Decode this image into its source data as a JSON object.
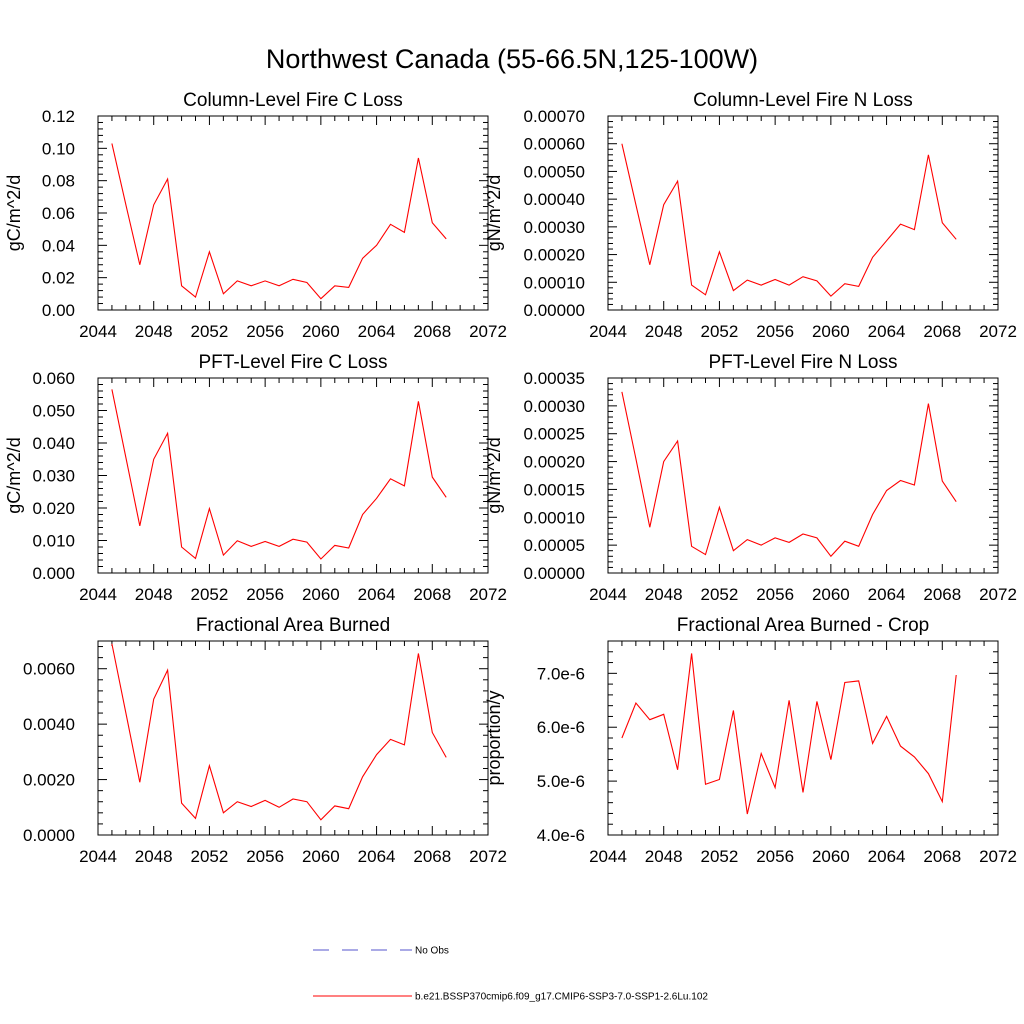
{
  "figure": {
    "title": "Northwest Canada (55-66.5N,125-100W)"
  },
  "legend": {
    "items": [
      {
        "label": "No Obs",
        "color": "#5555cc",
        "dash": "dashed"
      },
      {
        "label": "b.e21.BSSP370cmip6.f09_g17.CMIP6-SSP3-7.0-SSP1-2.6Lu.102",
        "color": "#ff0000",
        "dash": "solid"
      }
    ]
  },
  "chart_data": [
    {
      "type": "line",
      "title": "Column-Level Fire C Loss",
      "ylabel": "gC/m^2/d",
      "xlim": [
        2044,
        2072
      ],
      "ylim": [
        0,
        0.12
      ],
      "xticks": [
        2044,
        2048,
        2052,
        2056,
        2060,
        2064,
        2068,
        2072
      ],
      "yticks": [
        0,
        0.02,
        0.04,
        0.06,
        0.08,
        0.1,
        0.12
      ],
      "yticklabels": [
        "0.00",
        "0.02",
        "0.04",
        "0.06",
        "0.08",
        "0.10",
        "0.12"
      ],
      "x": [
        2045,
        2046,
        2047,
        2048,
        2049,
        2050,
        2051,
        2052,
        2053,
        2054,
        2055,
        2056,
        2057,
        2058,
        2059,
        2060,
        2061,
        2062,
        2063,
        2064,
        2065,
        2066,
        2067,
        2068,
        2069
      ],
      "series": [
        {
          "name": "b.e21.BSSP370cmip6.f09_g17.CMIP6-SSP3-7.0-SSP1-2.6Lu.102",
          "color": "#ff0000",
          "values": [
            0.103,
            0.065,
            0.028,
            0.065,
            0.081,
            0.015,
            0.008,
            0.036,
            0.01,
            0.018,
            0.015,
            0.018,
            0.015,
            0.019,
            0.017,
            0.007,
            0.015,
            0.014,
            0.032,
            0.04,
            0.053,
            0.048,
            0.094,
            0.054,
            0.044
          ]
        }
      ]
    },
    {
      "type": "line",
      "title": "Column-Level Fire N Loss",
      "ylabel": "gN/m^2/d",
      "xlim": [
        2044,
        2072
      ],
      "ylim": [
        0,
        0.0007
      ],
      "xticks": [
        2044,
        2048,
        2052,
        2056,
        2060,
        2064,
        2068,
        2072
      ],
      "yticks": [
        0,
        0.0001,
        0.0002,
        0.0003,
        0.0004,
        0.0005,
        0.0006,
        0.0007
      ],
      "yticklabels": [
        "0.00000",
        "0.00010",
        "0.00020",
        "0.00030",
        "0.00040",
        "0.00050",
        "0.00060",
        "0.00070"
      ],
      "x": [
        2045,
        2046,
        2047,
        2048,
        2049,
        2050,
        2051,
        2052,
        2053,
        2054,
        2055,
        2056,
        2057,
        2058,
        2059,
        2060,
        2061,
        2062,
        2063,
        2064,
        2065,
        2066,
        2067,
        2068,
        2069
      ],
      "series": [
        {
          "name": "b.e21.BSSP370cmip6.f09_g17.CMIP6-SSP3-7.0-SSP1-2.6Lu.102",
          "color": "#ff0000",
          "values": [
            0.0006,
            0.00038,
            0.000163,
            0.00038,
            0.000465,
            9e-05,
            5.5e-05,
            0.00021,
            7e-05,
            0.000108,
            9e-05,
            0.00011,
            9e-05,
            0.00012,
            0.000105,
            5e-05,
            9.5e-05,
            8.5e-05,
            0.00019,
            0.00025,
            0.00031,
            0.00029,
            0.00056,
            0.000315,
            0.000255
          ]
        }
      ]
    },
    {
      "type": "line",
      "title": "PFT-Level Fire C Loss",
      "ylabel": "gC/m^2/d",
      "xlim": [
        2044,
        2072
      ],
      "ylim": [
        0,
        0.06
      ],
      "xticks": [
        2044,
        2048,
        2052,
        2056,
        2060,
        2064,
        2068,
        2072
      ],
      "yticks": [
        0,
        0.01,
        0.02,
        0.03,
        0.04,
        0.05,
        0.06
      ],
      "yticklabels": [
        "0.000",
        "0.010",
        "0.020",
        "0.030",
        "0.040",
        "0.050",
        "0.060"
      ],
      "x": [
        2045,
        2046,
        2047,
        2048,
        2049,
        2050,
        2051,
        2052,
        2053,
        2054,
        2055,
        2056,
        2057,
        2058,
        2059,
        2060,
        2061,
        2062,
        2063,
        2064,
        2065,
        2066,
        2067,
        2068,
        2069
      ],
      "series": [
        {
          "name": "b.e21.BSSP370cmip6.f09_g17.CMIP6-SSP3-7.0-SSP1-2.6Lu.102",
          "color": "#ff0000",
          "values": [
            0.0565,
            0.0355,
            0.0145,
            0.035,
            0.043,
            0.008,
            0.0045,
            0.0198,
            0.0055,
            0.0099,
            0.0082,
            0.0097,
            0.0082,
            0.0104,
            0.0095,
            0.0043,
            0.0085,
            0.0077,
            0.018,
            0.023,
            0.029,
            0.0268,
            0.0528,
            0.0295,
            0.0233
          ]
        }
      ]
    },
    {
      "type": "line",
      "title": "PFT-Level Fire N Loss",
      "ylabel": "gN/m^2/d",
      "xlim": [
        2044,
        2072
      ],
      "ylim": [
        0,
        0.00035
      ],
      "xticks": [
        2044,
        2048,
        2052,
        2056,
        2060,
        2064,
        2068,
        2072
      ],
      "yticks": [
        0,
        5e-05,
        0.0001,
        0.00015,
        0.0002,
        0.00025,
        0.0003,
        0.00035
      ],
      "yticklabels": [
        "0.00000",
        "0.00005",
        "0.00010",
        "0.00015",
        "0.00020",
        "0.00025",
        "0.00030",
        "0.00035"
      ],
      "x": [
        2045,
        2046,
        2047,
        2048,
        2049,
        2050,
        2051,
        2052,
        2053,
        2054,
        2055,
        2056,
        2057,
        2058,
        2059,
        2060,
        2061,
        2062,
        2063,
        2064,
        2065,
        2066,
        2067,
        2068,
        2069
      ],
      "series": [
        {
          "name": "b.e21.BSSP370cmip6.f09_g17.CMIP6-SSP3-7.0-SSP1-2.6Lu.102",
          "color": "#ff0000",
          "values": [
            0.000325,
            0.000205,
            8.2e-05,
            0.0002,
            0.000237,
            4.8e-05,
            3.3e-05,
            0.000118,
            4e-05,
            6e-05,
            5e-05,
            6.3e-05,
            5.5e-05,
            7e-05,
            6.3e-05,
            3e-05,
            5.7e-05,
            4.8e-05,
            0.000105,
            0.000148,
            0.000166,
            0.000158,
            0.000304,
            0.000165,
            0.000128
          ]
        }
      ]
    },
    {
      "type": "line",
      "title": "Fractional Area Burned",
      "ylabel": "",
      "xlim": [
        2044,
        2072
      ],
      "ylim": [
        0,
        0.007
      ],
      "xticks": [
        2044,
        2048,
        2052,
        2056,
        2060,
        2064,
        2068,
        2072
      ],
      "yticks": [
        0,
        0.002,
        0.004,
        0.006
      ],
      "yticklabels": [
        "0.0000",
        "0.0020",
        "0.0040",
        "0.0060"
      ],
      "x": [
        2045,
        2046,
        2047,
        2048,
        2049,
        2050,
        2051,
        2052,
        2053,
        2054,
        2055,
        2056,
        2057,
        2058,
        2059,
        2060,
        2061,
        2062,
        2063,
        2064,
        2065,
        2066,
        2067,
        2068,
        2069
      ],
      "series": [
        {
          "name": "b.e21.BSSP370cmip6.f09_g17.CMIP6-SSP3-7.0-SSP1-2.6Lu.102",
          "color": "#ff0000",
          "values": [
            0.0069,
            0.0044,
            0.0019,
            0.0049,
            0.00595,
            0.00115,
            0.0006,
            0.0025,
            0.0008,
            0.0012,
            0.00103,
            0.00125,
            0.001,
            0.0013,
            0.0012,
            0.00055,
            0.00105,
            0.00095,
            0.0021,
            0.0029,
            0.00345,
            0.00325,
            0.00655,
            0.0037,
            0.0028
          ]
        }
      ]
    },
    {
      "type": "line",
      "title": "Fractional Area Burned - Crop",
      "ylabel": "proportion/y",
      "xlim": [
        2044,
        2072
      ],
      "ylim": [
        4e-06,
        7.6e-06
      ],
      "xticks": [
        2044,
        2048,
        2052,
        2056,
        2060,
        2064,
        2068,
        2072
      ],
      "yticks": [
        4e-06,
        5e-06,
        6e-06,
        7e-06
      ],
      "yticklabels": [
        "4.0e-6",
        "5.0e-6",
        "6.0e-6",
        "7.0e-6"
      ],
      "x": [
        2045,
        2046,
        2047,
        2048,
        2049,
        2050,
        2051,
        2052,
        2053,
        2054,
        2055,
        2056,
        2057,
        2058,
        2059,
        2060,
        2061,
        2062,
        2063,
        2064,
        2065,
        2066,
        2067,
        2068,
        2069
      ],
      "series": [
        {
          "name": "b.e21.BSSP370cmip6.f09_g17.CMIP6-SSP3-7.0-SSP1-2.6Lu.102",
          "color": "#ff0000",
          "values": [
            5.8e-06,
            6.45e-06,
            6.14e-06,
            6.24e-06,
            5.21e-06,
            7.37e-06,
            4.94e-06,
            5.03e-06,
            6.31e-06,
            4.39e-06,
            5.51e-06,
            4.88e-06,
            6.5e-06,
            4.79e-06,
            6.48e-06,
            5.4e-06,
            6.83e-06,
            6.86e-06,
            5.7e-06,
            6.2e-06,
            5.65e-06,
            5.45e-06,
            5.14e-06,
            4.62e-06,
            6.97e-06
          ]
        }
      ]
    }
  ]
}
